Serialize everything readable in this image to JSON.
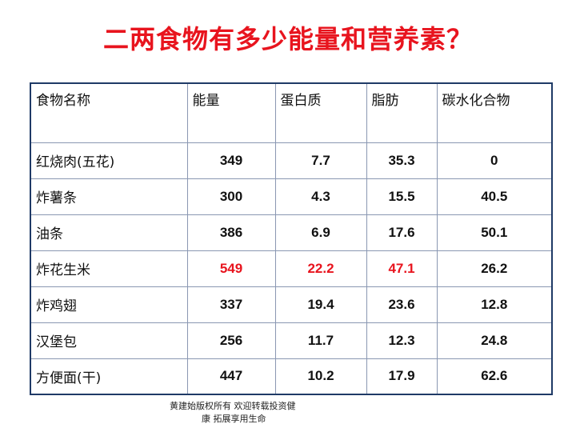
{
  "title": "二两食物有多少能量和营养素？",
  "table": {
    "headers": [
      "食物名称",
      "能量",
      "蛋白质",
      "脂肪",
      "碳水化合物"
    ],
    "rows": [
      {
        "name": "红烧肉(五花)",
        "values": [
          "349",
          "7.7",
          "35.3",
          "0"
        ],
        "highlight": [
          false,
          false,
          false,
          false
        ]
      },
      {
        "name": "炸薯条",
        "values": [
          "300",
          "4.3",
          "15.5",
          "40.5"
        ],
        "highlight": [
          false,
          false,
          false,
          false
        ]
      },
      {
        "name": "油条",
        "values": [
          "386",
          "6.9",
          "17.6",
          "50.1"
        ],
        "highlight": [
          false,
          false,
          false,
          false
        ]
      },
      {
        "name": "炸花生米",
        "values": [
          "549",
          "22.2",
          "47.1",
          "26.2"
        ],
        "highlight": [
          true,
          true,
          true,
          false
        ]
      },
      {
        "name": "炸鸡翅",
        "values": [
          "337",
          "19.4",
          "23.6",
          "12.8"
        ],
        "highlight": [
          false,
          false,
          false,
          false
        ]
      },
      {
        "name": "汉堡包",
        "values": [
          "256",
          "11.7",
          "12.3",
          "24.8"
        ],
        "highlight": [
          false,
          false,
          false,
          false
        ]
      },
      {
        "name": "方便面(干)",
        "values": [
          "447",
          "10.2",
          "17.9",
          "62.6"
        ],
        "highlight": [
          false,
          false,
          false,
          false
        ]
      }
    ]
  },
  "footer": {
    "line1": "黄建始版权所有 欢迎转载投资健",
    "line2": "康  拓展享用生命"
  },
  "colors": {
    "title": "#e8141e",
    "highlight": "#e8141e",
    "border": "#1f3a66"
  }
}
